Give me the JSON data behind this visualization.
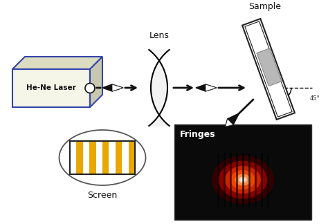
{
  "labels": {
    "laser": "He-Ne Laser",
    "lens": "Lens",
    "sample": "Sample",
    "screen": "Screen",
    "fringes": "Fringes",
    "angle": "45°"
  },
  "colors": {
    "laser_box_fill": "#f5f5e8",
    "laser_box_top": "#dcdcc0",
    "laser_box_right": "#c8c8b0",
    "laser_edge": "#3344aa",
    "arrow_color": "#111111",
    "lens_fill": "#f0f0f0",
    "sample_fill": "#ffffff",
    "sample_film": "#b0b0b0",
    "fringe_stripe": "#e8a800",
    "screen_fill": "#ffffff",
    "fringes_bg": "#0a0a0a",
    "text_color": "#111111"
  }
}
